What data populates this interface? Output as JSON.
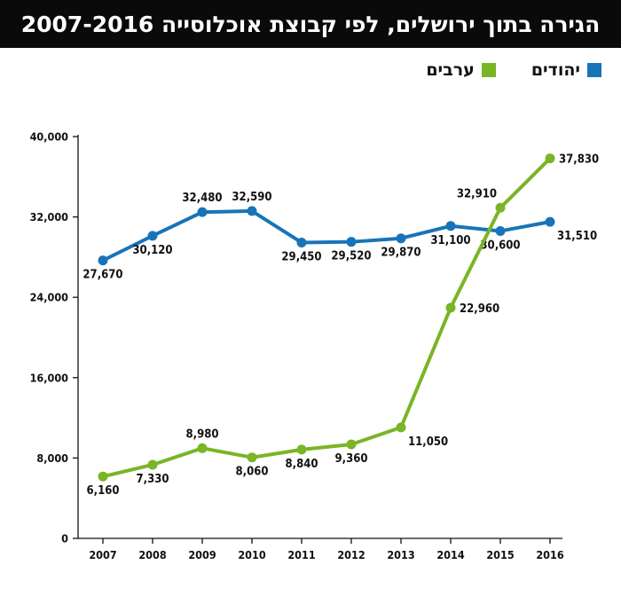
{
  "header": {
    "title": "הגירה בתוך ירושלים, לפי קבוצת אוכלוסייה 2007-2016"
  },
  "legend": [
    {
      "label": "יהודים",
      "color": "#1874b8"
    },
    {
      "label": "ערבים",
      "color": "#79b526"
    }
  ],
  "chart_data": {
    "type": "line",
    "title": "הגירה בתוך ירושלים, לפי קבוצת אוכלוסייה 2007-2016",
    "xlabel": "",
    "ylabel": "",
    "x": [
      "2007",
      "2008",
      "2009",
      "2010",
      "2011",
      "2012",
      "2013",
      "2014",
      "2015",
      "2016"
    ],
    "ylim": [
      0,
      40000
    ],
    "yticks": [
      0,
      8000,
      16000,
      24000,
      32000,
      40000
    ],
    "ytick_labels": [
      "0",
      "8,000",
      "16,000",
      "24,000",
      "32,000",
      "40,000"
    ],
    "grid": false,
    "legend_position": "top-right",
    "series": [
      {
        "name": "יהודים",
        "color": "#1874b8",
        "values": [
          27670,
          30120,
          32480,
          32590,
          29450,
          29520,
          29870,
          31100,
          30600,
          31510
        ],
        "labels": [
          "27,670",
          "30,120",
          "32,480",
          "32,590",
          "29,450",
          "29,520",
          "29,870",
          "31,100",
          "30,600",
          "31,510"
        ]
      },
      {
        "name": "ערבים",
        "color": "#79b526",
        "values": [
          6160,
          7330,
          8980,
          8060,
          8840,
          9360,
          11050,
          22960,
          32910,
          37830
        ],
        "labels": [
          "6,160",
          "7,330",
          "8,980",
          "8,060",
          "8,840",
          "9,360",
          "11,050",
          "22,960",
          "32,910",
          "37,830"
        ]
      }
    ]
  }
}
